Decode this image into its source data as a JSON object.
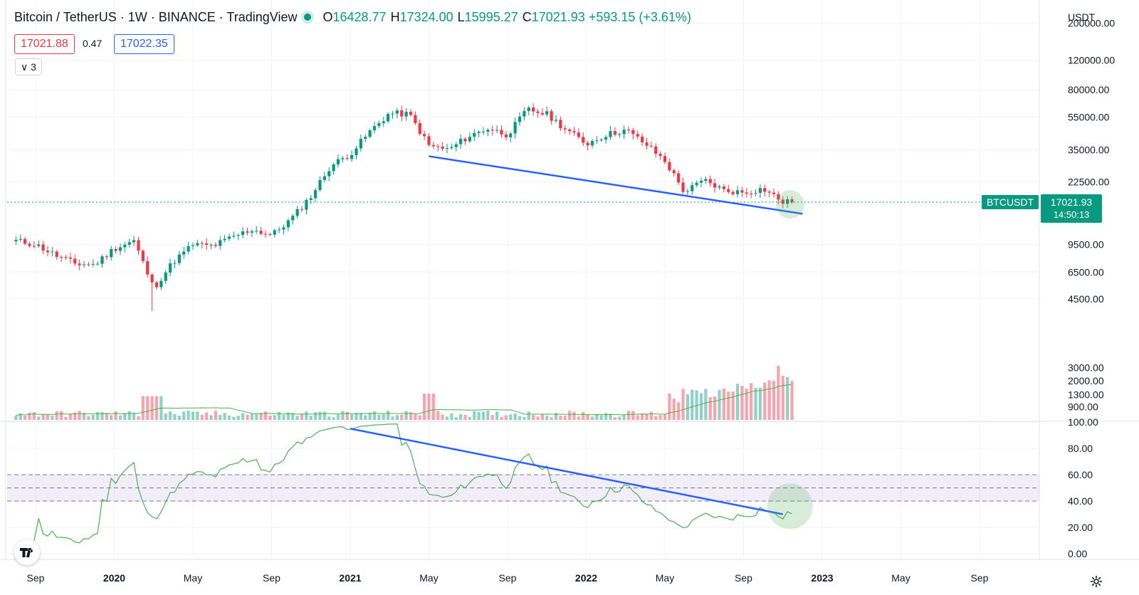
{
  "header": {
    "title": "Bitcoin / TetherUS · 1W · BINANCE · TradingView",
    "open_label": "O",
    "open": "16428.77",
    "high_label": "H",
    "high": "17324.00",
    "low_label": "L",
    "low": "15995.27",
    "close_label": "C",
    "close": "17021.93",
    "change": "+593.15 (+3.61%)",
    "bid": "17021.88",
    "spread": "0.47",
    "ask": "17022.35",
    "collapse_count": "3"
  },
  "price_axis": {
    "currency": "USDT",
    "ticks": [
      "200000.00",
      "120000.00",
      "80000.00",
      "55000.00",
      "35000.00",
      "22500.00",
      "9500.00",
      "6500.00",
      "4500.00"
    ],
    "scale": "log"
  },
  "volume_axis": {
    "ticks": [
      "3000.00",
      "2000.00",
      "1300.00",
      "900.00"
    ]
  },
  "rsi_axis": {
    "ticks": [
      "100.00",
      "80.00",
      "60.00",
      "40.00",
      "20.00",
      "0.00"
    ]
  },
  "time_axis": {
    "labels": [
      {
        "text": "Sep",
        "bold": false
      },
      {
        "text": "2020",
        "bold": true
      },
      {
        "text": "May",
        "bold": false
      },
      {
        "text": "Sep",
        "bold": false
      },
      {
        "text": "2021",
        "bold": true
      },
      {
        "text": "May",
        "bold": false
      },
      {
        "text": "Sep",
        "bold": false
      },
      {
        "text": "2022",
        "bold": true
      },
      {
        "text": "May",
        "bold": false
      },
      {
        "text": "Sep",
        "bold": false
      },
      {
        "text": "2023",
        "bold": true
      },
      {
        "text": "May",
        "bold": false
      },
      {
        "text": "Sep",
        "bold": false
      }
    ]
  },
  "price_tag": {
    "symbol": "BTCUSDT",
    "price": "17021.93",
    "countdown": "14:50:13"
  },
  "colors": {
    "up": "#089981",
    "down": "#f23645",
    "trendline": "#2962ff",
    "ma": "#4caf50",
    "rsi_band": "#7e57c2"
  },
  "icons": {
    "logo": "tradingview-logo-icon",
    "settings": "gear-icon",
    "collapse": "chevron-down-icon"
  },
  "chart_data": {
    "type": "candlestick",
    "interval": "1W",
    "symbol": "BTCUSDT",
    "price_scale": "log",
    "range_start": "2019-08",
    "range_end": "2022-11",
    "anchors_close": [
      [
        "2019-08",
        10000
      ],
      [
        "2019-09",
        9500
      ],
      [
        "2019-10",
        8200
      ],
      [
        "2019-11",
        7300
      ],
      [
        "2019-12",
        7200
      ],
      [
        "2020-01",
        9000
      ],
      [
        "2020-02",
        10000
      ],
      [
        "2020-03",
        5200
      ],
      [
        "2020-04",
        7500
      ],
      [
        "2020-05",
        9500
      ],
      [
        "2020-06",
        9300
      ],
      [
        "2020-07",
        10500
      ],
      [
        "2020-08",
        11700
      ],
      [
        "2020-09",
        10800
      ],
      [
        "2020-10",
        13500
      ],
      [
        "2020-11",
        18500
      ],
      [
        "2020-12",
        28000
      ],
      [
        "2021-01",
        33000
      ],
      [
        "2021-02",
        45000
      ],
      [
        "2021-03",
        58000
      ],
      [
        "2021-04",
        57000
      ],
      [
        "2021-05",
        37000
      ],
      [
        "2021-06",
        35000
      ],
      [
        "2021-07",
        42000
      ],
      [
        "2021-08",
        47000
      ],
      [
        "2021-09",
        43000
      ],
      [
        "2021-10",
        61000
      ],
      [
        "2021-11",
        57000
      ],
      [
        "2021-12",
        46000
      ],
      [
        "2022-01",
        38000
      ],
      [
        "2022-02",
        43000
      ],
      [
        "2022-03",
        46000
      ],
      [
        "2022-04",
        38000
      ],
      [
        "2022-05",
        30000
      ],
      [
        "2022-06",
        19500
      ],
      [
        "2022-07",
        23000
      ],
      [
        "2022-08",
        20000
      ],
      [
        "2022-09",
        19400
      ],
      [
        "2022-10",
        20500
      ],
      [
        "2022-11",
        17021.93
      ]
    ],
    "volume_ma_period": 20,
    "rsi_period": 14,
    "rsi_band": [
      40,
      60
    ],
    "rsi_mid": 50,
    "rsi_range": [
      0,
      100
    ],
    "trendlines": [
      {
        "pane": "price",
        "from": [
          "2021-05",
          32000
        ],
        "to": [
          "2022-12",
          14500
        ]
      },
      {
        "pane": "rsi",
        "from": [
          "2021-01",
          95
        ],
        "to": [
          "2022-11",
          30
        ]
      }
    ],
    "highlights": [
      {
        "pane": "price",
        "at": [
          "2022-11",
          16500
        ]
      },
      {
        "pane": "rsi",
        "at": [
          "2022-11",
          36
        ]
      }
    ]
  }
}
